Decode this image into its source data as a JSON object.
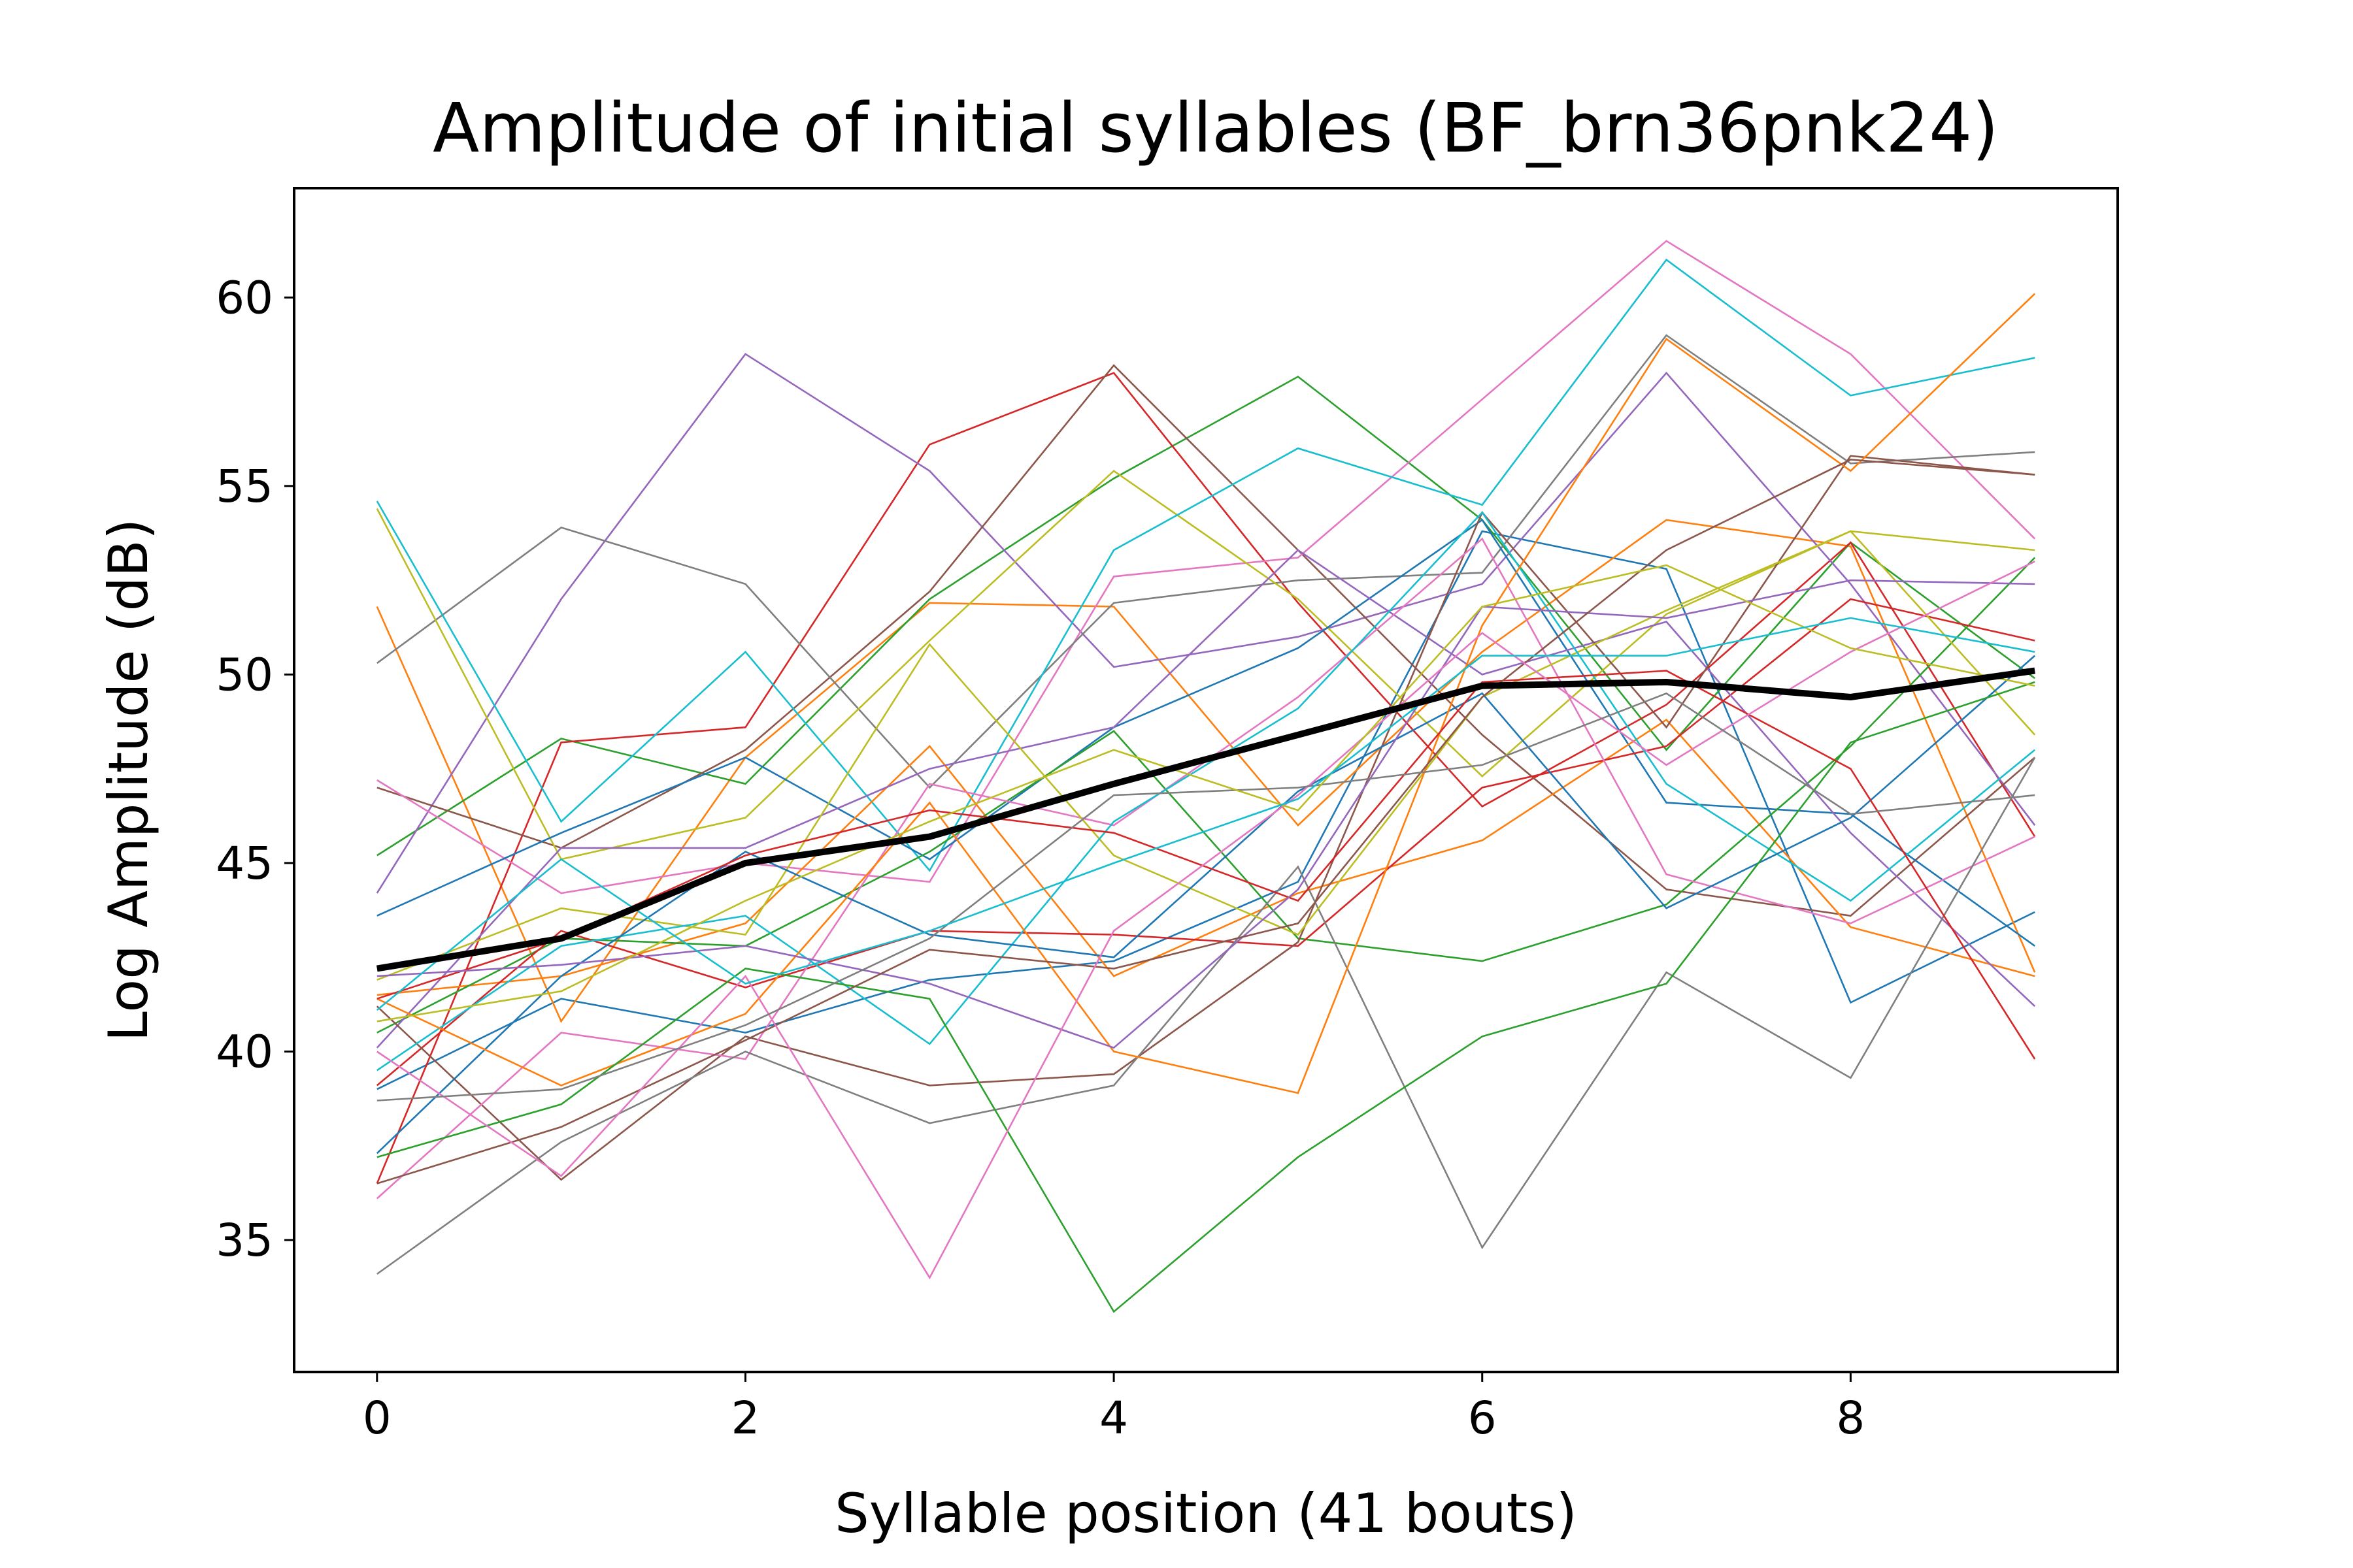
{
  "chart_data": {
    "type": "line",
    "title": "Amplitude of initial syllables (BF_brn36pnk24)",
    "xlabel": "Syllable position (41 bouts)",
    "ylabel": "Log Amplitude (dB)",
    "xlim": [
      -0.45,
      9.45
    ],
    "ylim": [
      31.5,
      62.9
    ],
    "x": [
      0,
      1,
      2,
      3,
      4,
      5,
      6,
      7,
      8,
      9
    ],
    "xticks": [
      0,
      2,
      4,
      6,
      8
    ],
    "yticks": [
      35,
      40,
      45,
      50,
      55,
      60
    ],
    "grid": false,
    "colors": [
      "#1f77b4",
      "#ff7f0e",
      "#2ca02c",
      "#d62728",
      "#9467bd",
      "#8c564b",
      "#e377c2",
      "#7f7f7f",
      "#bcbd22",
      "#17becf"
    ],
    "series": [
      {
        "values": [
          39.0,
          41.4,
          40.5,
          41.9,
          42.4,
          44.5,
          53.8,
          52.8,
          41.3,
          43.7
        ]
      },
      {
        "values": [
          51.8,
          40.8,
          47.8,
          51.9,
          51.8,
          46.0,
          50.6,
          54.1,
          53.4,
          42.1
        ]
      },
      {
        "values": [
          45.2,
          48.3,
          47.1,
          52.0,
          55.2,
          57.9,
          54.1,
          48.0,
          53.5,
          49.9
        ]
      },
      {
        "values": [
          36.5,
          48.2,
          48.6,
          56.1,
          58.0,
          51.9,
          46.5,
          49.2,
          53.5,
          45.7
        ]
      },
      {
        "values": [
          44.2,
          52.0,
          58.5,
          55.4,
          50.2,
          51.0,
          52.4,
          58.0,
          52.4,
          46.0
        ]
      },
      {
        "values": [
          47.0,
          45.4,
          48.0,
          52.2,
          58.2,
          53.3,
          48.4,
          44.3,
          43.6,
          47.8
        ]
      },
      {
        "values": [
          47.2,
          44.2,
          45.0,
          44.5,
          52.6,
          53.1,
          57.3,
          61.5,
          58.5,
          53.6
        ]
      },
      {
        "values": [
          50.3,
          53.9,
          52.4,
          47.0,
          51.9,
          52.5,
          52.7,
          59.0,
          55.6,
          55.9
        ]
      },
      {
        "values": [
          54.4,
          45.1,
          46.2,
          50.9,
          55.4,
          52.0,
          47.3,
          51.6,
          53.8,
          53.3
        ]
      },
      {
        "values": [
          54.6,
          46.1,
          50.6,
          44.8,
          53.3,
          56.0,
          54.5,
          61.0,
          57.4,
          58.4
        ]
      },
      {
        "values": [
          43.6,
          45.8,
          47.8,
          45.1,
          48.6,
          50.7,
          54.1,
          46.6,
          46.3,
          42.8
        ]
      },
      {
        "values": [
          41.5,
          42.0,
          43.4,
          48.1,
          42.0,
          44.2,
          45.6,
          48.8,
          43.3,
          42.0
        ]
      },
      {
        "values": [
          40.5,
          43.0,
          42.8,
          45.3,
          48.5,
          43.0,
          42.4,
          43.9,
          48.1,
          53.1
        ]
      },
      {
        "values": [
          39.1,
          43.2,
          41.7,
          43.2,
          43.1,
          42.8,
          47.0,
          48.1,
          52.0,
          50.9
        ]
      },
      {
        "values": [
          40.1,
          45.4,
          45.4,
          47.5,
          48.6,
          53.3,
          50.0,
          51.4,
          45.8,
          41.2
        ]
      },
      {
        "values": [
          41.2,
          36.6,
          40.4,
          39.1,
          39.4,
          42.9,
          54.3,
          48.6,
          55.8,
          55.3
        ]
      },
      {
        "values": [
          36.1,
          40.5,
          39.8,
          47.1,
          46.0,
          49.4,
          53.6,
          44.7,
          43.4,
          45.7
        ]
      },
      {
        "values": [
          34.1,
          37.6,
          40.0,
          38.1,
          39.1,
          44.9,
          34.8,
          42.1,
          39.3,
          47.8
        ]
      },
      {
        "values": [
          41.9,
          43.8,
          43.1,
          50.8,
          45.2,
          43.1,
          49.4,
          51.7,
          53.8,
          48.4
        ]
      },
      {
        "values": [
          39.5,
          42.8,
          43.6,
          40.2,
          46.1,
          49.1,
          54.3,
          47.1,
          44.0,
          48.0
        ]
      },
      {
        "values": [
          37.3,
          42.0,
          45.3,
          43.1,
          42.5,
          46.9,
          49.5,
          43.8,
          46.2,
          50.5
        ]
      },
      {
        "values": [
          41.4,
          39.1,
          41.0,
          46.6,
          40.0,
          38.9,
          51.3,
          58.9,
          55.4,
          60.1
        ]
      },
      {
        "values": [
          37.2,
          38.6,
          42.2,
          41.4,
          33.1,
          37.2,
          40.4,
          41.8,
          48.2,
          49.8
        ]
      },
      {
        "values": [
          41.4,
          43.0,
          45.2,
          46.4,
          45.8,
          44.0,
          49.8,
          50.1,
          47.5,
          39.8
        ]
      },
      {
        "values": [
          42.0,
          42.3,
          42.8,
          41.8,
          40.1,
          44.3,
          51.8,
          51.5,
          52.5,
          52.4
        ]
      },
      {
        "values": [
          36.5,
          38.0,
          40.3,
          42.7,
          42.2,
          43.4,
          49.4,
          53.3,
          55.7,
          55.3
        ]
      },
      {
        "values": [
          40.0,
          36.7,
          42.0,
          34.0,
          43.2,
          46.8,
          51.1,
          47.6,
          50.6,
          53.0
        ]
      },
      {
        "values": [
          38.7,
          39.0,
          40.7,
          43.0,
          46.8,
          47.0,
          47.6,
          49.5,
          46.3,
          46.8
        ]
      },
      {
        "values": [
          40.8,
          41.6,
          44.0,
          46.1,
          48.0,
          46.4,
          51.8,
          52.9,
          50.7,
          49.7
        ]
      },
      {
        "values": [
          41.1,
          45.1,
          41.8,
          43.2,
          45.0,
          46.7,
          50.5,
          50.5,
          51.5,
          50.6
        ]
      }
    ],
    "mean": {
      "color": "#000000",
      "values": [
        42.2,
        43.0,
        45.0,
        45.7,
        47.1,
        48.4,
        49.7,
        49.8,
        49.4,
        50.1
      ]
    }
  }
}
